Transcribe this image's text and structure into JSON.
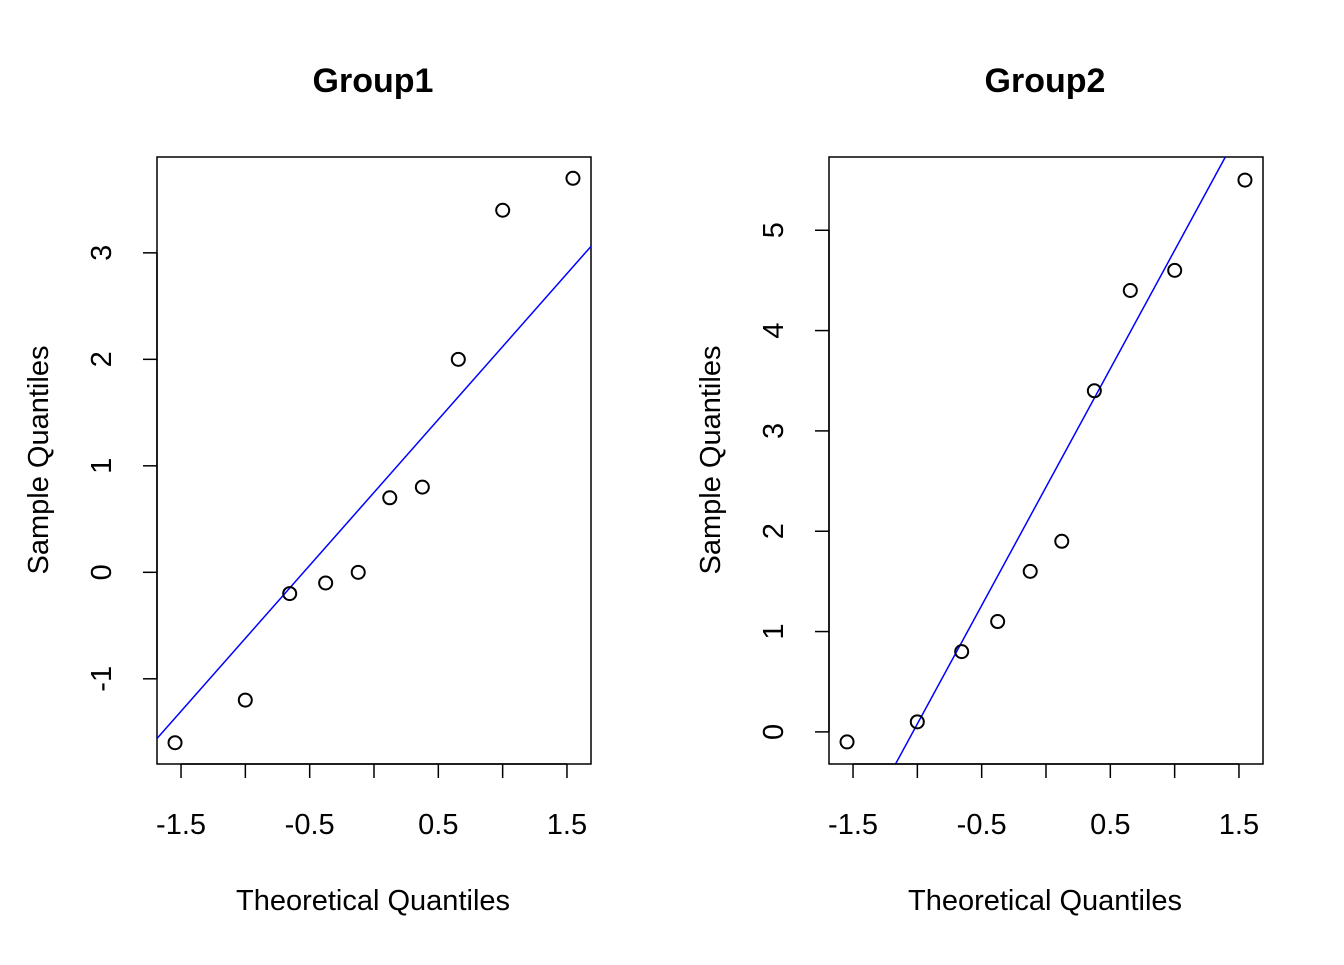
{
  "chart_data": [
    {
      "type": "scatter",
      "title": "Group1",
      "xlabel": "Theoretical Quantiles",
      "ylabel": "Sample Quantiles",
      "xlim": [
        -1.6868,
        1.6868
      ],
      "ylim": [
        -1.8,
        3.9
      ],
      "x_ticks": [
        -1.5,
        -1.0,
        -0.5,
        0.0,
        0.5,
        1.0,
        1.5
      ],
      "x_tick_labels": [
        "-1.5",
        "",
        "-0.5",
        "",
        "0.5",
        "",
        "1.5"
      ],
      "y_ticks": [
        -1,
        0,
        1,
        2,
        3
      ],
      "y_tick_labels": [
        "-1",
        "0",
        "1",
        "2",
        "3"
      ],
      "x": [
        -1.5466,
        -1.0004,
        -0.6554,
        -0.3758,
        -0.1226,
        0.1226,
        0.3758,
        0.6554,
        1.0004,
        1.5466
      ],
      "y": [
        -1.6,
        -1.2,
        -0.2,
        -0.1,
        0.0,
        0.7,
        0.8,
        2.0,
        3.4,
        3.7
      ],
      "reference_line": {
        "intercept": 0.75,
        "slope": 1.37
      },
      "line_color": "#0000ff",
      "marker": "open-circle",
      "grid": false
    },
    {
      "type": "scatter",
      "title": "Group2",
      "xlabel": "Theoretical Quantiles",
      "ylabel": "Sample Quantiles",
      "xlim": [
        -1.6868,
        1.6868
      ],
      "ylim": [
        -0.32,
        5.73
      ],
      "x_ticks": [
        -1.5,
        -1.0,
        -0.5,
        0.0,
        0.5,
        1.0,
        1.5
      ],
      "x_tick_labels": [
        "-1.5",
        "",
        "-0.5",
        "",
        "0.5",
        "",
        "1.5"
      ],
      "y_ticks": [
        0,
        1,
        2,
        3,
        4,
        5
      ],
      "y_tick_labels": [
        "0",
        "1",
        "2",
        "3",
        "4",
        "5"
      ],
      "x": [
        -1.5466,
        -1.0004,
        -0.6554,
        -0.3758,
        -0.1226,
        0.1226,
        0.3758,
        0.6554,
        1.0004,
        1.5466
      ],
      "y": [
        -0.1,
        0.1,
        0.8,
        1.1,
        1.6,
        1.9,
        3.4,
        4.4,
        4.6,
        5.5
      ],
      "reference_line": {
        "intercept": 2.44,
        "slope": 2.36
      },
      "line_color": "#0000ff",
      "marker": "open-circle",
      "grid": false
    }
  ]
}
